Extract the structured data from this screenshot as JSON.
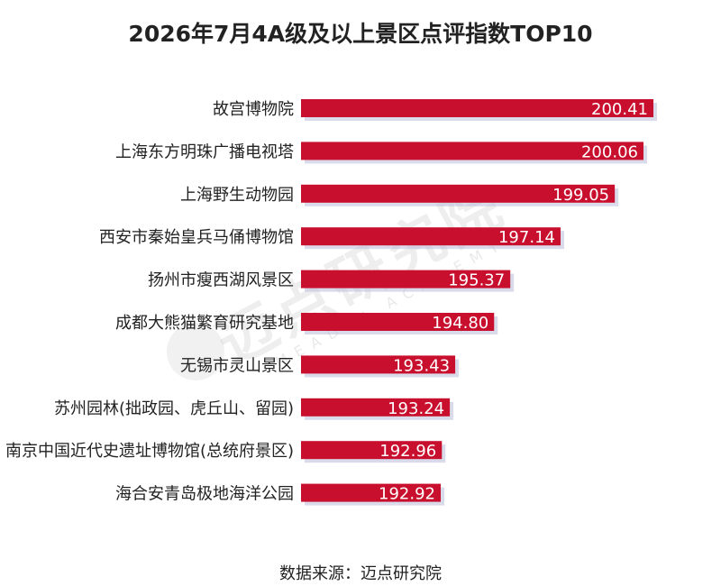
{
  "chart_data": {
    "type": "bar",
    "orientation": "horizontal",
    "title": "2026年7月4A级及以上景区点评指数TOP10",
    "categories": [
      "故宫博物院",
      "上海东方明珠广播电视塔",
      "上海野生动物园",
      "西安市秦始皇兵马俑博物馆",
      "扬州市瘦西湖风景区",
      "成都大熊猫繁育研究基地",
      "无锡市灵山景区",
      "苏州园林(拙政园、虎丘山、留园)",
      "南京中国近代史遗址博物馆(总统府景区)",
      "海合安青岛极地海洋公园"
    ],
    "values": [
      200.41,
      200.06,
      199.05,
      197.14,
      195.37,
      194.8,
      193.43,
      193.24,
      192.96,
      192.92
    ],
    "value_labels": [
      "200.41",
      "200.06",
      "199.05",
      "197.14",
      "195.37",
      "194.80",
      "193.43",
      "193.24",
      "192.96",
      "192.92"
    ],
    "bar_color": "#c8102e",
    "grid": false,
    "legend": "none"
  },
  "watermark": {
    "text": "迈点研究院",
    "subtext": "MEADIN ACADEMY"
  },
  "source": "数据来源：迈点研究院"
}
